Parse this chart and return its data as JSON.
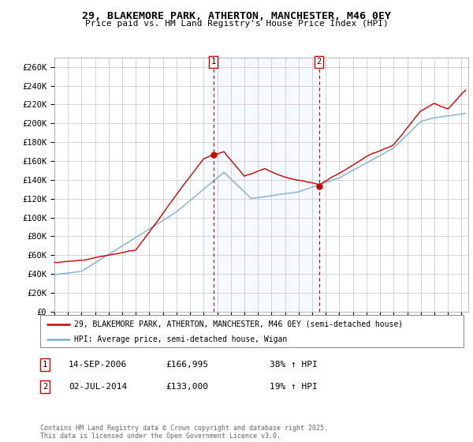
{
  "title": "29, BLAKEMORE PARK, ATHERTON, MANCHESTER, M46 0EY",
  "subtitle": "Price paid vs. HM Land Registry's House Price Index (HPI)",
  "ylabel_ticks": [
    "£0",
    "£20K",
    "£40K",
    "£60K",
    "£80K",
    "£100K",
    "£120K",
    "£140K",
    "£160K",
    "£180K",
    "£200K",
    "£220K",
    "£240K",
    "£260K"
  ],
  "ytick_values": [
    0,
    20000,
    40000,
    60000,
    80000,
    100000,
    120000,
    140000,
    160000,
    180000,
    200000,
    220000,
    240000,
    260000
  ],
  "ylim": [
    0,
    270000
  ],
  "xlim_start": 1995.0,
  "xlim_end": 2025.5,
  "line1_color": "#cc0000",
  "line2_color": "#7bafd4",
  "shade_color": "#ddeeff",
  "grid_color": "#cccccc",
  "background_color": "#ffffff",
  "sale1_x": 2006.71,
  "sale1_y": 166995,
  "sale2_x": 2014.5,
  "sale2_y": 133000,
  "legend_line1": "29, BLAKEMORE PARK, ATHERTON, MANCHESTER, M46 0EY (semi-detached house)",
  "legend_line2": "HPI: Average price, semi-detached house, Wigan",
  "annotation1_date": "14-SEP-2006",
  "annotation1_price": "£166,995",
  "annotation1_hpi": "38% ↑ HPI",
  "annotation2_date": "02-JUL-2014",
  "annotation2_price": "£133,000",
  "annotation2_hpi": "19% ↑ HPI",
  "copyright_text": "Contains HM Land Registry data © Crown copyright and database right 2025.\nThis data is licensed under the Open Government Licence v3.0."
}
